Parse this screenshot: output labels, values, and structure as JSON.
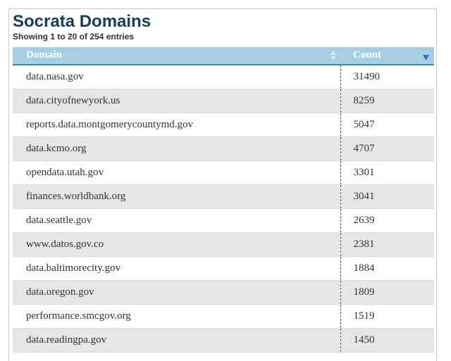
{
  "page": {
    "title": "Socrata Domains",
    "info": "Showing 1 to 20 of 254 entries"
  },
  "table": {
    "columns": [
      "Domain",
      "Count"
    ],
    "sort": {
      "column": "Count",
      "direction": "descending"
    },
    "rows": [
      {
        "domain": "data.nasa.gov",
        "count": "31490"
      },
      {
        "domain": "data.cityofnewyork.us",
        "count": "8259"
      },
      {
        "domain": "reports.data.montgomerycountymd.gov",
        "count": "5047"
      },
      {
        "domain": "data.kcmo.org",
        "count": "4707"
      },
      {
        "domain": "opendata.utah.gov",
        "count": "3301"
      },
      {
        "domain": "finances.worldbank.org",
        "count": "3041"
      },
      {
        "domain": "data.seattle.gov",
        "count": "2639"
      },
      {
        "domain": "www.datos.gov.co",
        "count": "2381"
      },
      {
        "domain": "data.baltimorecity.gov",
        "count": "1884"
      },
      {
        "domain": "data.oregon.gov",
        "count": "1809"
      },
      {
        "domain": "performance.smcgov.org",
        "count": "1519"
      },
      {
        "domain": "data.readingpa.gov",
        "count": "1450"
      }
    ]
  },
  "colors": {
    "title": "#123f55",
    "header_bg": "#a7cfe2",
    "header_border": "#3e88b5",
    "sort_active": "#3e6fb5",
    "row_alt": "#e6e6e6"
  },
  "icons": {
    "domain_sort": "sort-both-icon",
    "count_sort": "sort-descending-icon"
  }
}
